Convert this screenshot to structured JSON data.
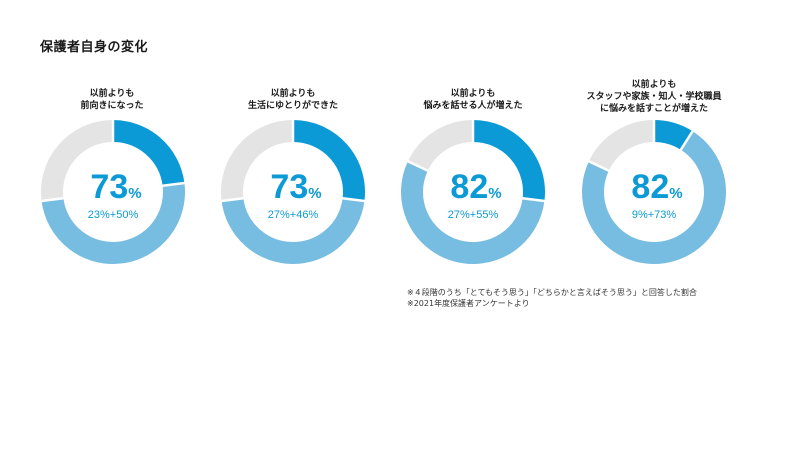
{
  "page": {
    "title": "保護者自身の変化"
  },
  "colors": {
    "strong": "#0b9ad6",
    "light": "#77bde1",
    "rest": "#e4e4e4",
    "text_accent": "#0b9ad6"
  },
  "chart_data": [
    {
      "type": "pie",
      "label_lines": [
        "以前よりも",
        "前向きになった"
      ],
      "unit": "%",
      "total": 73,
      "breakdown_text": "23%+50%",
      "series": [
        {
          "name": "とてもそう思う",
          "value": 23
        },
        {
          "name": "どちらかと言えばそう思う",
          "value": 50
        }
      ]
    },
    {
      "type": "pie",
      "label_lines": [
        "以前よりも",
        "生活にゆとりができた"
      ],
      "unit": "%",
      "total": 73,
      "breakdown_text": "27%+46%",
      "series": [
        {
          "name": "とてもそう思う",
          "value": 27
        },
        {
          "name": "どちらかと言えばそう思う",
          "value": 46
        }
      ]
    },
    {
      "type": "pie",
      "label_lines": [
        "以前よりも",
        "悩みを話せる人が増えた"
      ],
      "unit": "%",
      "total": 82,
      "breakdown_text": "27%+55%",
      "series": [
        {
          "name": "とてもそう思う",
          "value": 27
        },
        {
          "name": "どちらかと言えばそう思う",
          "value": 55
        }
      ]
    },
    {
      "type": "pie",
      "label_lines": [
        "以前よりも",
        "スタッフや家族・知人・学校職員",
        "に悩みを話すことが増えた"
      ],
      "unit": "%",
      "total": 82,
      "breakdown_text": "9%+73%",
      "series": [
        {
          "name": "とてもそう思う",
          "value": 9
        },
        {
          "name": "どちらかと言えばそう思う",
          "value": 73
        }
      ]
    }
  ],
  "footnotes": [
    "※４段階のうち「とてもそう思う」「どちらかと言えばそう思う」と回答した割合",
    "※2021年度保護者アンケートより"
  ]
}
